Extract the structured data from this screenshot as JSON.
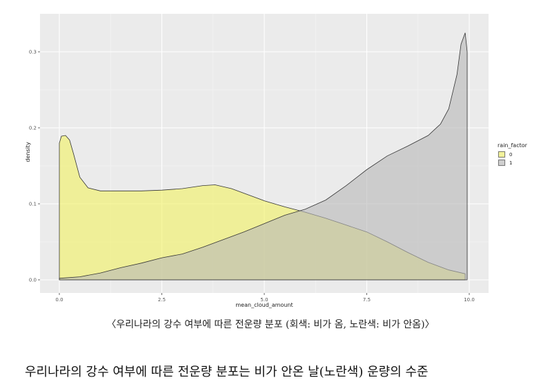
{
  "chart_data": {
    "type": "area",
    "title": "",
    "xlabel": "mean_cloud_amount",
    "ylabel": "density",
    "xlim": [
      0,
      10
    ],
    "ylim": [
      0,
      0.33
    ],
    "x_ticks": [
      0.0,
      2.5,
      5.0,
      7.5,
      10.0
    ],
    "x_tick_labels": [
      "0.0",
      "2.5",
      "5.0",
      "7.5",
      "10.0"
    ],
    "y_ticks": [
      0.0,
      0.1,
      0.2,
      0.3
    ],
    "y_tick_labels": [
      "0.0",
      "0.1",
      "0.2",
      "0.3"
    ],
    "grid": true,
    "legend": {
      "title": "rain_factor",
      "placement": "right"
    },
    "series": [
      {
        "name": "0",
        "color": "#f2f261",
        "x": [
          0.0,
          0.05,
          0.15,
          0.25,
          0.35,
          0.5,
          0.7,
          1.0,
          1.5,
          2.0,
          2.5,
          3.0,
          3.5,
          3.8,
          4.2,
          4.6,
          5.0,
          5.5,
          6.0,
          6.5,
          7.0,
          7.5,
          8.0,
          8.5,
          9.0,
          9.5,
          9.9
        ],
        "values": [
          0.18,
          0.189,
          0.19,
          0.184,
          0.165,
          0.135,
          0.121,
          0.117,
          0.117,
          0.117,
          0.118,
          0.12,
          0.124,
          0.125,
          0.12,
          0.112,
          0.104,
          0.096,
          0.089,
          0.081,
          0.072,
          0.063,
          0.05,
          0.036,
          0.023,
          0.013,
          0.008
        ]
      },
      {
        "name": "1",
        "color": "#b7b7b7",
        "x": [
          0.0,
          0.5,
          1.0,
          1.5,
          2.0,
          2.5,
          3.0,
          3.5,
          4.0,
          4.5,
          5.0,
          5.5,
          6.0,
          6.5,
          7.0,
          7.5,
          8.0,
          8.5,
          9.0,
          9.3,
          9.5,
          9.7,
          9.8,
          9.9,
          9.95
        ],
        "values": [
          0.002,
          0.004,
          0.009,
          0.016,
          0.022,
          0.029,
          0.034,
          0.043,
          0.053,
          0.063,
          0.074,
          0.085,
          0.093,
          0.105,
          0.124,
          0.145,
          0.163,
          0.176,
          0.19,
          0.205,
          0.225,
          0.27,
          0.31,
          0.325,
          0.3
        ]
      }
    ]
  },
  "caption": "〈우리나라의 강수 여부에 따른 전운량 분포 (회색: 비가 옴, 노란색: 비가 안옴)〉",
  "body_text": "우리나라의 강수 여부에 따른 전운량 분포는 비가 안온 날(노란색) 운량의 수준"
}
